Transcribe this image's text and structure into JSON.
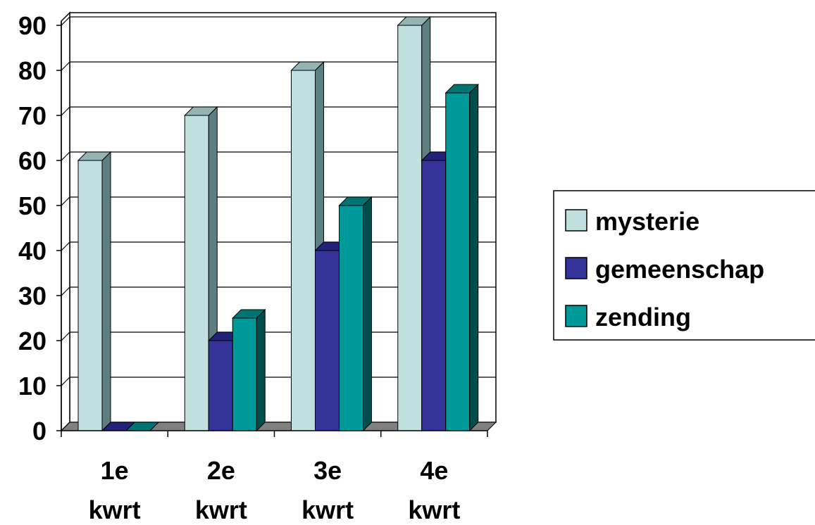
{
  "chart_data": {
    "type": "bar",
    "categories": [
      [
        "1e",
        "kwrt"
      ],
      [
        "2e",
        "kwrt"
      ],
      [
        "3e",
        "kwrt"
      ],
      [
        "4e",
        "kwrt"
      ]
    ],
    "series": [
      {
        "name": "mysterie",
        "values": [
          60,
          70,
          80,
          90
        ],
        "color": "#c0e0e0",
        "side": "#5e7f7f",
        "top": "#94b4b4"
      },
      {
        "name": "gemeenschap",
        "values": [
          0,
          20,
          40,
          60
        ],
        "color": "#333399",
        "side": "#1a1a66",
        "top": "#22227a"
      },
      {
        "name": "zending",
        "values": [
          0,
          25,
          50,
          75
        ],
        "color": "#009999",
        "side": "#004d4d",
        "top": "#007373"
      }
    ],
    "yticks": [
      0,
      10,
      20,
      30,
      40,
      50,
      60,
      70,
      80,
      90
    ],
    "ylim": [
      0,
      90
    ],
    "grid": true,
    "legend_position": "right",
    "floor_color": "#808080"
  }
}
